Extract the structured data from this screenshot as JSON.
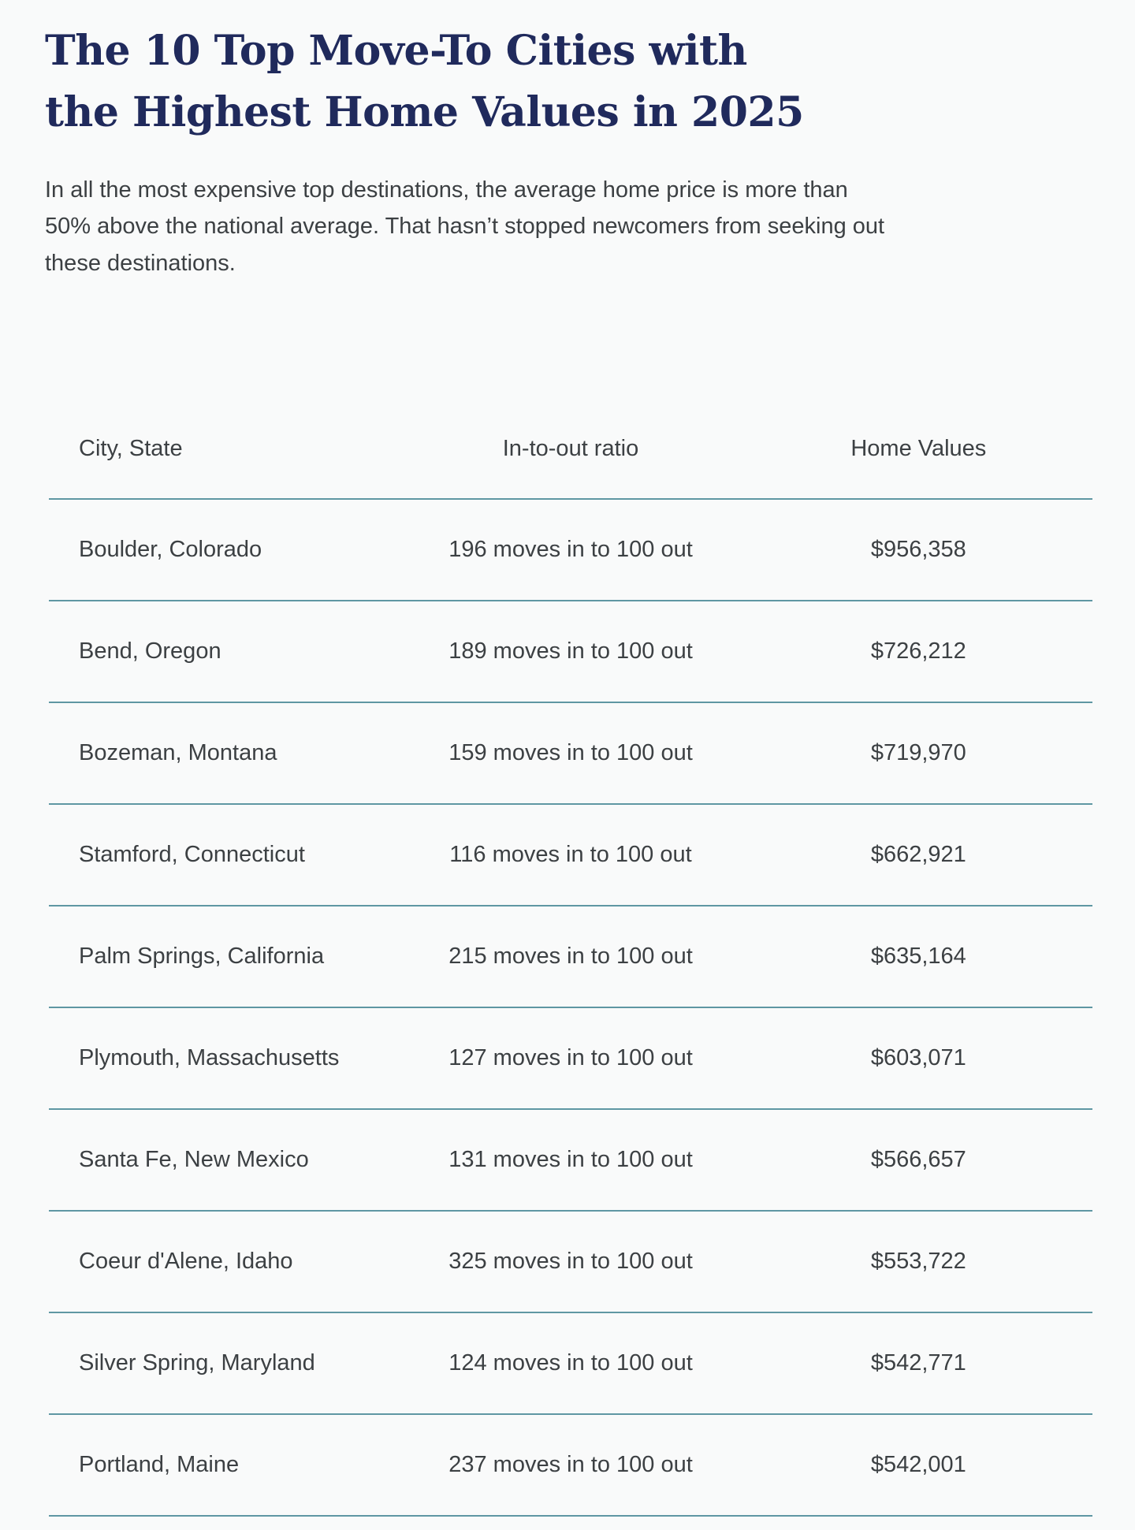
{
  "page": {
    "title": "The 10 Top Move-To Cities with the Highest Home Values in 2025",
    "intro": "In all the most expensive top destinations, the average home price is more than 50% above the national average. That hasn’t stopped newcomers from seeking out these destinations."
  },
  "table": {
    "columns": [
      "City, State",
      "In-to-out ratio",
      "Home Values"
    ],
    "rows": [
      {
        "city": "Boulder, Colorado",
        "ratio": "196 moves in to 100 out",
        "value": "$956,358"
      },
      {
        "city": "Bend, Oregon",
        "ratio": "189 moves in to 100 out",
        "value": "$726,212"
      },
      {
        "city": "Bozeman, Montana",
        "ratio": "159 moves in to 100 out",
        "value": "$719,970"
      },
      {
        "city": "Stamford, Connecticut",
        "ratio": "116 moves in to 100 out",
        "value": "$662,921"
      },
      {
        "city": "Palm Springs, California",
        "ratio": "215 moves in to 100 out",
        "value": "$635,164"
      },
      {
        "city": "Plymouth, Massachusetts",
        "ratio": "127 moves in to 100 out",
        "value": "$603,071"
      },
      {
        "city": "Santa Fe, New Mexico",
        "ratio": "131 moves in to 100 out",
        "value": "$566,657"
      },
      {
        "city": "Coeur d'Alene, Idaho",
        "ratio": "325 moves in to 100 out",
        "value": "$553,722"
      },
      {
        "city": "Silver Spring, Maryland",
        "ratio": "124 moves in to 100 out",
        "value": "$542,771"
      },
      {
        "city": "Portland, Maine",
        "ratio": "237 moves in to 100 out",
        "value": "$542,001"
      }
    ]
  },
  "colors": {
    "background": "#f9fafa",
    "title": "#202a5c",
    "text": "#3c4043",
    "divider_rule": "#5f97a3"
  },
  "chart_data": {
    "type": "table",
    "title": "The 10 Top Move-To Cities with the Highest Home Values in 2025",
    "subtitle": "In all the most expensive top destinations, the average home price is more than 50% above the national average. That hasn’t stopped newcomers from seeking out these destinations.",
    "columns": [
      "City, State",
      "In-to-out ratio",
      "Home Values"
    ],
    "rows": [
      [
        "Boulder, Colorado",
        "196 moves in to 100 out",
        "$956,358"
      ],
      [
        "Bend, Oregon",
        "189 moves in to 100 out",
        "$726,212"
      ],
      [
        "Bozeman, Montana",
        "159 moves in to 100 out",
        "$719,970"
      ],
      [
        "Stamford, Connecticut",
        "116 moves in to 100 out",
        "$662,921"
      ],
      [
        "Palm Springs, California",
        "215 moves in to 100 out",
        "$635,164"
      ],
      [
        "Plymouth, Massachusetts",
        "127 moves in to 100 out",
        "$603,071"
      ],
      [
        "Santa Fe, New Mexico",
        "131 moves in to 100 out",
        "$566,657"
      ],
      [
        "Coeur d'Alene, Idaho",
        "325 moves in to 100 out",
        "$553,722"
      ],
      [
        "Silver Spring, Maryland",
        "124 moves in to 100 out",
        "$542,771"
      ],
      [
        "Portland, Maine",
        "237 moves in to 100 out",
        "$542,001"
      ]
    ],
    "in_to_out_ratio_moves_in_per_100_out": [
      196,
      189,
      159,
      116,
      215,
      127,
      131,
      325,
      124,
      237
    ],
    "home_values_usd": [
      956358,
      726212,
      719970,
      662921,
      635164,
      603071,
      566657,
      553722,
      542771,
      542001
    ],
    "layout": {
      "grid": "horizontal row dividers only",
      "header_alignment": [
        "left",
        "center",
        "center"
      ]
    }
  }
}
